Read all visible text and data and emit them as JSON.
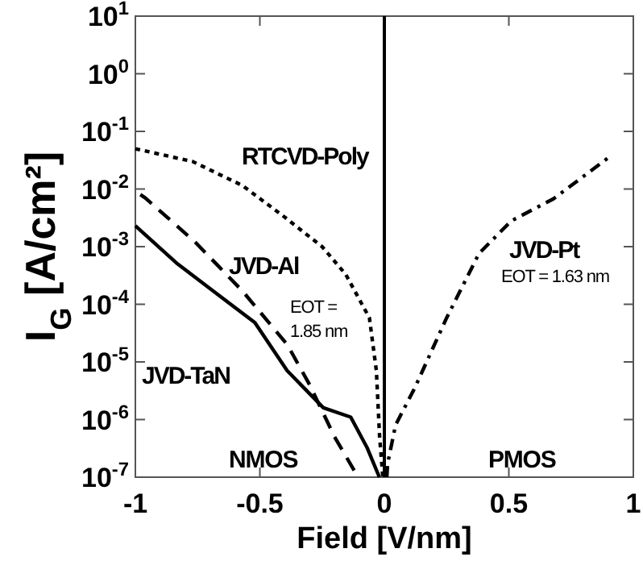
{
  "chart_data": {
    "type": "line",
    "xlabel": "Field [V/nm]",
    "ylabel": "I$_{G}$ [A/cm²]",
    "log": "y",
    "xlim": [
      -1,
      1
    ],
    "xticks": [
      -1,
      -0.5,
      0,
      0.5,
      1
    ],
    "ylim": [
      1e-07,
      10
    ],
    "yticks": [
      {
        "value": 10,
        "label": "10$^{1}$"
      },
      {
        "value": 1,
        "label": "10$^{0}$"
      },
      {
        "value": 0.1,
        "label": "10$^{-1}$"
      },
      {
        "value": 0.01,
        "label": "10$^{-2}$"
      },
      {
        "value": 0.001,
        "label": "10$^{-3}$"
      },
      {
        "value": 0.0001,
        "label": "10$^{-4}$"
      },
      {
        "value": 1e-05,
        "label": "10$^{-5}$"
      },
      {
        "value": 1e-06,
        "label": "10$^{-6}$"
      },
      {
        "value": 1e-07,
        "label": "10$^{-7}$"
      }
    ],
    "grid": false,
    "marker": "none",
    "series": [
      {
        "name": "RTCVD-Poly",
        "color": "#000000",
        "line_style": "dotted",
        "x": [
          -1,
          -0.77,
          -0.57,
          -0.41,
          -0.25,
          -0.155,
          -0.06,
          -0.032,
          -0.019,
          -0.006
        ],
        "values": [
          0.05,
          0.03,
          0.0115,
          0.0035,
          0.001,
          0.00033,
          5.8e-05,
          7e-06,
          5e-07,
          1e-07
        ]
      },
      {
        "name": "JVD-Al",
        "color": "#000000",
        "line_style": "dashed",
        "x": [
          -0.98,
          -0.96,
          -0.76,
          -0.57,
          -0.39,
          -0.3,
          -0.2,
          -0.116
        ],
        "values": [
          0.008,
          0.007,
          0.0012,
          0.00017,
          2e-05,
          4e-06,
          5e-07,
          1.2e-07
        ]
      },
      {
        "name": "JVD-TaN",
        "color": "#000000",
        "line_style": "solid",
        "x": [
          -1,
          -0.83,
          -0.63,
          -0.52,
          -0.39,
          -0.245,
          -0.135,
          -0.07,
          -0.02
        ],
        "values": [
          0.0023,
          0.0005,
          0.00011,
          4.8e-05,
          7e-06,
          1.6e-06,
          1.1e-06,
          3.3e-07,
          1e-07
        ]
      },
      {
        "name": "JVD-Pt",
        "color": "#000000",
        "line_style": "dashdot",
        "x": [
          0.01,
          0.013,
          0.045,
          0.123,
          0.25,
          0.38,
          0.51,
          0.68,
          0.9
        ],
        "values": [
          1e-07,
          1.7e-07,
          8e-07,
          3.6e-06,
          5.8e-05,
          0.00076,
          0.0028,
          0.0068,
          0.035
        ]
      }
    ],
    "ref_lines": [
      {
        "axis": "x",
        "value": 0,
        "color": "#000000",
        "line_style": "solid"
      }
    ],
    "annotations": [
      "EOT = \n1.85 nm",
      "EOT = 1.63 nm",
      "NMOS",
      "PMOS"
    ]
  }
}
